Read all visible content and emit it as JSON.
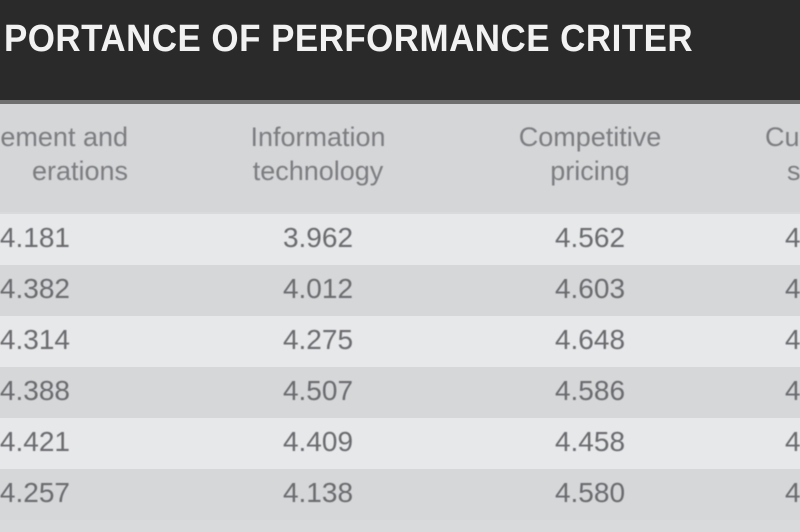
{
  "title": "PORTANCE OF PERFORMANCE CRITER",
  "columns": [
    {
      "line1": "ement and",
      "line2": "erations"
    },
    {
      "line1": "Information",
      "line2": "technology"
    },
    {
      "line1": "Competitive",
      "line2": "pricing"
    },
    {
      "line1": "Cu",
      "line2": "s"
    }
  ],
  "rows": [
    [
      "4.181",
      "3.962",
      "4.562",
      "4"
    ],
    [
      "4.382",
      "4.012",
      "4.603",
      "4"
    ],
    [
      "4.314",
      "4.275",
      "4.648",
      "4"
    ],
    [
      "4.388",
      "4.507",
      "4.586",
      "4"
    ],
    [
      "4.421",
      "4.409",
      "4.458",
      "4"
    ],
    [
      "4.257",
      "4.138",
      "4.580",
      "4"
    ]
  ]
}
